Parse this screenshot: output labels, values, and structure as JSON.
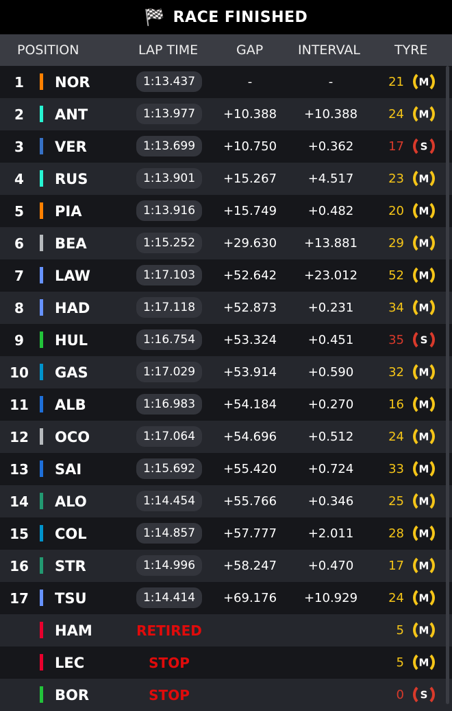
{
  "header": {
    "title": "RACE FINISHED",
    "icon": "checkered-flag-icon"
  },
  "columns": {
    "position": "POSITION",
    "lap_time": "LAP TIME",
    "gap": "GAP",
    "interval": "INTERVAL",
    "tyre": "TYRE"
  },
  "colors": {
    "medium": "#f5c518",
    "soft": "#d93a2b",
    "status": "#e00b0b"
  },
  "rows": [
    {
      "pos": "1",
      "driver": "NOR",
      "team_color": "#ff8000",
      "lap": "1:13.437",
      "gap": "-",
      "interval": "-",
      "laps": "21",
      "tyre": "M"
    },
    {
      "pos": "2",
      "driver": "ANT",
      "team_color": "#27f4d2",
      "lap": "1:13.977",
      "gap": "+10.388",
      "interval": "+10.388",
      "laps": "24",
      "tyre": "M"
    },
    {
      "pos": "3",
      "driver": "VER",
      "team_color": "#3671c6",
      "lap": "1:13.699",
      "gap": "+10.750",
      "interval": "+0.362",
      "laps": "17",
      "tyre": "S"
    },
    {
      "pos": "4",
      "driver": "RUS",
      "team_color": "#27f4d2",
      "lap": "1:13.901",
      "gap": "+15.267",
      "interval": "+4.517",
      "laps": "23",
      "tyre": "M"
    },
    {
      "pos": "5",
      "driver": "PIA",
      "team_color": "#ff8000",
      "lap": "1:13.916",
      "gap": "+15.749",
      "interval": "+0.482",
      "laps": "20",
      "tyre": "M"
    },
    {
      "pos": "6",
      "driver": "BEA",
      "team_color": "#b6babd",
      "lap": "1:15.252",
      "gap": "+29.630",
      "interval": "+13.881",
      "laps": "29",
      "tyre": "M"
    },
    {
      "pos": "7",
      "driver": "LAW",
      "team_color": "#6692ff",
      "lap": "1:17.103",
      "gap": "+52.642",
      "interval": "+23.012",
      "laps": "52",
      "tyre": "M"
    },
    {
      "pos": "8",
      "driver": "HAD",
      "team_color": "#6692ff",
      "lap": "1:17.118",
      "gap": "+52.873",
      "interval": "+0.231",
      "laps": "34",
      "tyre": "M"
    },
    {
      "pos": "9",
      "driver": "HUL",
      "team_color": "#22c33a",
      "lap": "1:16.754",
      "gap": "+53.324",
      "interval": "+0.451",
      "laps": "35",
      "tyre": "S"
    },
    {
      "pos": "10",
      "driver": "GAS",
      "team_color": "#0093cc",
      "lap": "1:17.029",
      "gap": "+53.914",
      "interval": "+0.590",
      "laps": "32",
      "tyre": "M"
    },
    {
      "pos": "11",
      "driver": "ALB",
      "team_color": "#1e6fd9",
      "lap": "1:16.983",
      "gap": "+54.184",
      "interval": "+0.270",
      "laps": "16",
      "tyre": "M"
    },
    {
      "pos": "12",
      "driver": "OCO",
      "team_color": "#b6babd",
      "lap": "1:17.064",
      "gap": "+54.696",
      "interval": "+0.512",
      "laps": "24",
      "tyre": "M"
    },
    {
      "pos": "13",
      "driver": "SAI",
      "team_color": "#1e6fd9",
      "lap": "1:15.692",
      "gap": "+55.420",
      "interval": "+0.724",
      "laps": "33",
      "tyre": "M"
    },
    {
      "pos": "14",
      "driver": "ALO",
      "team_color": "#229971",
      "lap": "1:14.454",
      "gap": "+55.766",
      "interval": "+0.346",
      "laps": "25",
      "tyre": "M"
    },
    {
      "pos": "15",
      "driver": "COL",
      "team_color": "#0093cc",
      "lap": "1:14.857",
      "gap": "+57.777",
      "interval": "+2.011",
      "laps": "28",
      "tyre": "M"
    },
    {
      "pos": "16",
      "driver": "STR",
      "team_color": "#229971",
      "lap": "1:14.996",
      "gap": "+58.247",
      "interval": "+0.470",
      "laps": "17",
      "tyre": "M"
    },
    {
      "pos": "17",
      "driver": "TSU",
      "team_color": "#6692ff",
      "lap": "1:14.414",
      "gap": "+69.176",
      "interval": "+10.929",
      "laps": "24",
      "tyre": "M"
    },
    {
      "pos": "",
      "driver": "HAM",
      "team_color": "#e8002d",
      "status": "RETIRED",
      "laps": "5",
      "tyre": "M"
    },
    {
      "pos": "",
      "driver": "LEC",
      "team_color": "#e8002d",
      "status": "STOP",
      "laps": "5",
      "tyre": "M"
    },
    {
      "pos": "",
      "driver": "BOR",
      "team_color": "#22c33a",
      "status": "STOP",
      "laps": "0",
      "tyre": "S"
    }
  ]
}
